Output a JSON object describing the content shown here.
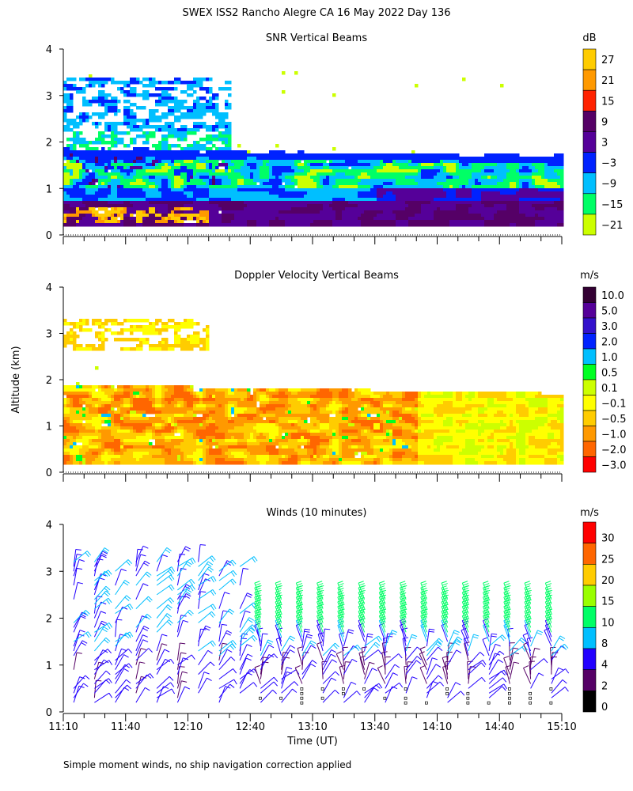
{
  "title": "SWEX ISS2 Rancho Alegre CA  16 May 2022 Day 136",
  "footnote": "Simple moment winds, no ship navigation correction applied",
  "ylabel": "Altitude (km)",
  "xlabel": "Time (UT)",
  "x_ticks": [
    "11:10",
    "11:40",
    "12:10",
    "12:40",
    "13:10",
    "13:40",
    "14:10",
    "14:40",
    "15:10"
  ],
  "y_ticks": [
    "0",
    "1",
    "2",
    "3",
    "4"
  ],
  "chart_data": [
    {
      "type": "heatmap",
      "title": "SNR Vertical Beams",
      "units": "dB",
      "xlim": [
        "11:10",
        "15:10"
      ],
      "ylim": [
        0,
        4
      ],
      "colorbar": {
        "labels": [
          "27",
          "21",
          "15",
          "9",
          "3",
          "−3",
          "−9",
          "−15",
          "−21"
        ],
        "colors": [
          "#ffcc00",
          "#ff9900",
          "#ff2200",
          "#550066",
          "#550099",
          "#0022ff",
          "#00bfff",
          "#00ff66",
          "#ccff00"
        ]
      }
    },
    {
      "type": "heatmap",
      "title": "Doppler Velocity Vertical Beams",
      "units": "m/s",
      "xlim": [
        "11:10",
        "15:10"
      ],
      "ylim": [
        0,
        4
      ],
      "colorbar": {
        "labels": [
          "10.0",
          "5.0",
          "3.0",
          "2.0",
          "1.0",
          "0.5",
          "0.1",
          "−0.1",
          "−0.5",
          "−1.0",
          "−2.0",
          "−3.0"
        ],
        "colors": [
          "#330033",
          "#550099",
          "#3311cc",
          "#0022ff",
          "#00bfff",
          "#00ff22",
          "#ccff00",
          "#ffff00",
          "#ffcc00",
          "#ff9900",
          "#ff6600",
          "#ff0000"
        ]
      }
    },
    {
      "type": "wind-barbs",
      "title": "Winds (10 minutes)",
      "units": "m/s",
      "xlim": [
        "11:10",
        "15:10"
      ],
      "ylim": [
        0,
        4
      ],
      "colorbar": {
        "labels": [
          "30",
          "25",
          "20",
          "15",
          "10",
          "8",
          "4",
          "2",
          "0"
        ],
        "colors": [
          "#ff0000",
          "#ff6600",
          "#ffcc00",
          "#99ff00",
          "#00ff66",
          "#00bfff",
          "#2200ff",
          "#550066",
          "#000000"
        ]
      }
    }
  ]
}
